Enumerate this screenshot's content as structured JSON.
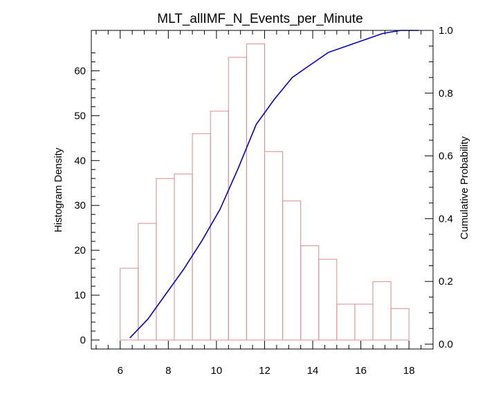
{
  "chart_data": {
    "type": "bar",
    "title": "MLT_allIMF_N_Events_per_Minute",
    "xlabel": "",
    "ylabel": "Histogram Density",
    "y2label": "Cumulative Probability",
    "xlim": [
      4.8,
      19.0
    ],
    "ylim": [
      -2,
      69
    ],
    "y2lim": [
      0.0,
      1.0
    ],
    "xticks": [
      "6",
      "8",
      "10",
      "12",
      "14",
      "16",
      "18"
    ],
    "yticks": [
      "0",
      "10",
      "20",
      "30",
      "40",
      "50",
      "60"
    ],
    "y2ticks": [
      "0.0",
      "0.2",
      "0.4",
      "0.6",
      "0.8",
      "1.0"
    ],
    "bar_color": "#e08a8a",
    "line_color": "#0000cc",
    "histogram": {
      "bin_width": 0.75,
      "bin_left_edges": [
        6.0,
        6.75,
        7.5,
        8.25,
        9.0,
        9.75,
        10.5,
        11.25,
        12.0,
        12.75,
        13.5,
        14.25,
        15.0,
        15.75,
        16.5,
        17.25
      ],
      "values": [
        16,
        26,
        36,
        37,
        46,
        51,
        63,
        66,
        42,
        31,
        21,
        18,
        8,
        8,
        13,
        7
      ]
    },
    "cumulative": {
      "x": [
        6.4,
        7.15,
        7.9,
        8.65,
        9.4,
        10.15,
        10.9,
        11.65,
        12.4,
        13.15,
        13.9,
        14.65,
        15.4,
        16.15,
        16.9,
        17.65,
        18.4
      ],
      "y": [
        0.02,
        0.08,
        0.16,
        0.24,
        0.33,
        0.43,
        0.56,
        0.7,
        0.78,
        0.85,
        0.89,
        0.93,
        0.95,
        0.97,
        0.99,
        1.0,
        1.0
      ]
    }
  }
}
